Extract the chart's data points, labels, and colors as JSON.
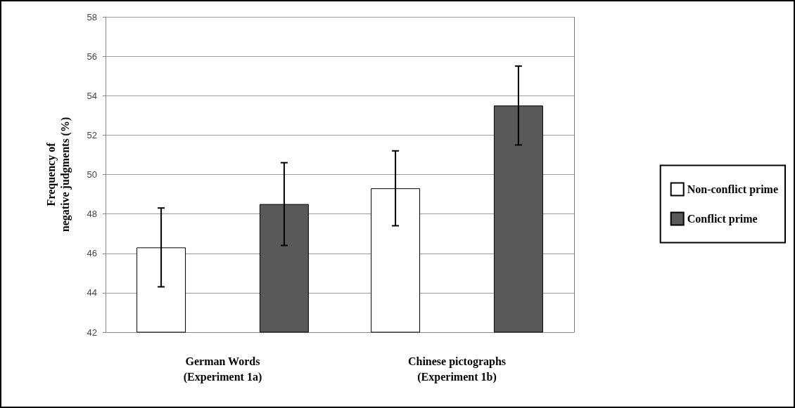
{
  "chart_data": {
    "type": "bar",
    "ylabel": "Frequency of\nnegative judgments (%)",
    "categories": [
      "German Words\n(Experiment 1a)",
      "Chinese pictographs\n(Experiment 1b)"
    ],
    "series": [
      {
        "name": "Non-conflict prime",
        "color": "#ffffff",
        "values": [
          46.3,
          49.3
        ],
        "errors": [
          2.0,
          1.9
        ]
      },
      {
        "name": "Conflict prime",
        "color": "#595959",
        "values": [
          48.5,
          53.5
        ],
        "errors": [
          2.1,
          2.0
        ]
      }
    ],
    "ylim": [
      42,
      58
    ],
    "yticks": [
      42,
      44,
      46,
      48,
      50,
      52,
      54,
      56,
      58
    ],
    "grid": "y",
    "legend": "right"
  }
}
